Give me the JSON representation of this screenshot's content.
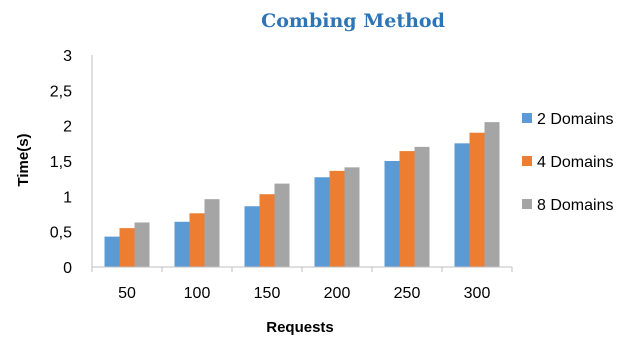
{
  "chart_data": {
    "type": "bar",
    "title": "Combing Method",
    "xlabel": "Requests",
    "ylabel": "Time(s)",
    "categories": [
      "50",
      "100",
      "150",
      "200",
      "250",
      "300"
    ],
    "series": [
      {
        "name": "2 Domains",
        "color": "#5b9bd5",
        "values": [
          0.43,
          0.64,
          0.86,
          1.27,
          1.5,
          1.75
        ]
      },
      {
        "name": "4 Domains",
        "color": "#ed7d31",
        "values": [
          0.55,
          0.76,
          1.03,
          1.36,
          1.64,
          1.9
        ]
      },
      {
        "name": "8 Domains",
        "color": "#a5a5a5",
        "values": [
          0.63,
          0.96,
          1.18,
          1.41,
          1.7,
          2.05
        ]
      }
    ],
    "ylim": [
      0,
      3
    ],
    "yticks": [
      "0",
      "0,5",
      "1",
      "1,5",
      "2",
      "2,5",
      "3"
    ],
    "grid": false,
    "legend_position": "right"
  }
}
